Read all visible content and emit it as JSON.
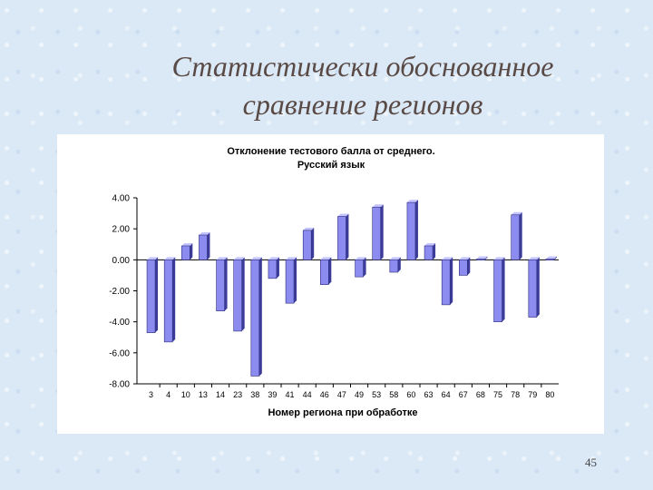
{
  "slide": {
    "title_line1": "Статистически обоснованное",
    "title_line2": "сравнение регионов",
    "page_number": "45"
  },
  "colors": {
    "bar_face": "#8c8cf0",
    "bar_side": "#3b3b9a",
    "bar_top": "#c4c4ff",
    "axis": "#000000"
  },
  "chart_data": {
    "type": "bar",
    "title_line1": "Отклонение тестового балла от среднего.",
    "title_line2": "Русский язык",
    "xlabel": "Номер региона при обработке",
    "ylabel": "",
    "ylim": [
      -8,
      4
    ],
    "yticks": [
      "4.00",
      "2.00",
      "0.00",
      "-2.00",
      "-4.00",
      "-6.00",
      "-8.00"
    ],
    "ytick_values": [
      4,
      2,
      0,
      -2,
      -4,
      -6,
      -8
    ],
    "categories": [
      "3",
      "4",
      "10",
      "13",
      "14",
      "23",
      "38",
      "39",
      "41",
      "44",
      "46",
      "47",
      "49",
      "53",
      "58",
      "60",
      "63",
      "64",
      "67",
      "68",
      "75",
      "78",
      "79",
      "80"
    ],
    "values": [
      -4.7,
      -5.3,
      0.9,
      1.6,
      -3.3,
      -4.6,
      -7.5,
      -1.2,
      -2.8,
      1.9,
      -1.6,
      2.8,
      -1.1,
      3.4,
      -0.8,
      3.7,
      0.9,
      -2.9,
      -1.0,
      0.05,
      -4.0,
      2.9,
      -3.7,
      0.05
    ],
    "grid": false,
    "legend": "none"
  }
}
